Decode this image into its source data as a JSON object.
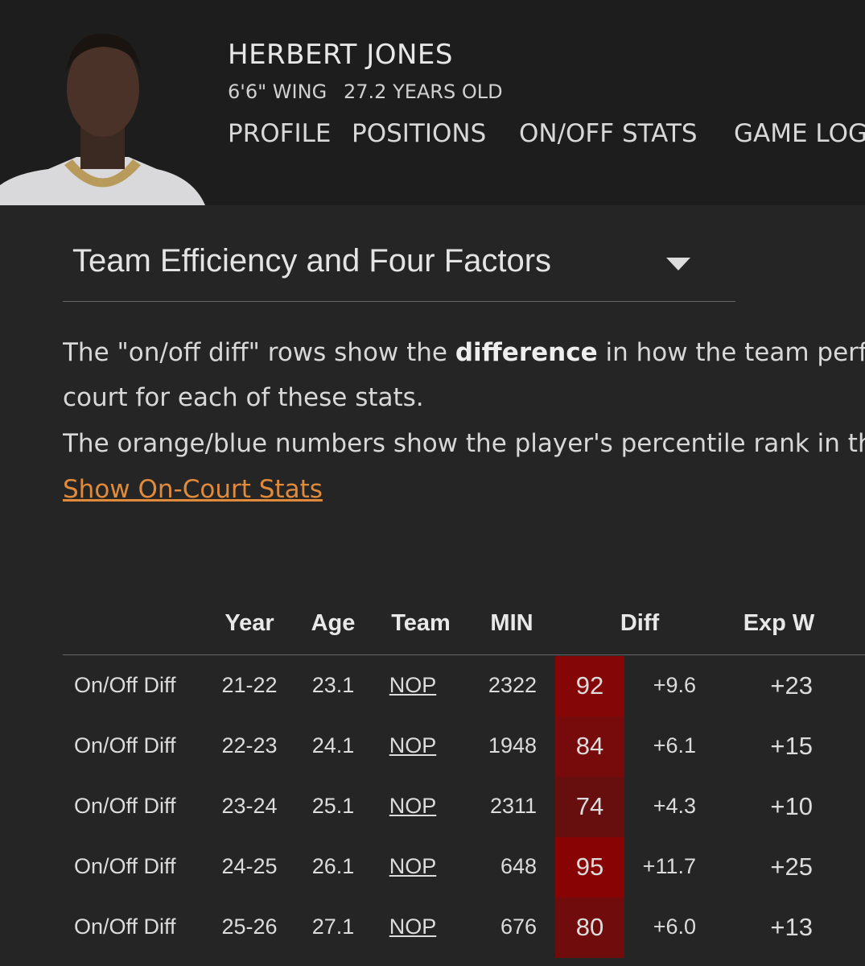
{
  "header": {
    "name": "HERBERT JONES",
    "meta": [
      "6'6\" WING",
      "27.2 YEARS OLD"
    ],
    "tabs": [
      "PROFILE",
      "POSITIONS",
      "ON/OFF STATS",
      "GAME LOG"
    ],
    "active_tab": 2
  },
  "selector": {
    "label": "Team Efficiency and Four Factors"
  },
  "description": {
    "line1_before": "The \"on/off diff\" rows show the ",
    "line1_bold": "difference",
    "line1_after": " in how the team performs",
    "line2": "court for each of these stats.",
    "line3": "The orange/blue numbers show the player's percentile rank in the",
    "link": "Show On-Court Stats"
  },
  "table": {
    "headers": [
      "Year",
      "Age",
      "Team",
      "MIN",
      "Diff",
      "Exp W"
    ],
    "rows": [
      [
        "On/Off Diff",
        "21-22",
        "23.1",
        "NOP",
        "2322",
        92,
        "+9.6",
        "+23"
      ],
      [
        "On/Off Diff",
        "22-23",
        "24.1",
        "NOP",
        "1948",
        84,
        "+6.1",
        "+15"
      ],
      [
        "On/Off Diff",
        "23-24",
        "25.1",
        "NOP",
        "2311",
        74,
        "+4.3",
        "+10"
      ],
      [
        "On/Off Diff",
        "24-25",
        "26.1",
        "NOP",
        "648",
        95,
        "+11.7",
        "+25"
      ],
      [
        "On/Off Diff",
        "25-26",
        "27.1",
        "NOP",
        "676",
        80,
        "+6.0",
        "+13"
      ]
    ]
  }
}
